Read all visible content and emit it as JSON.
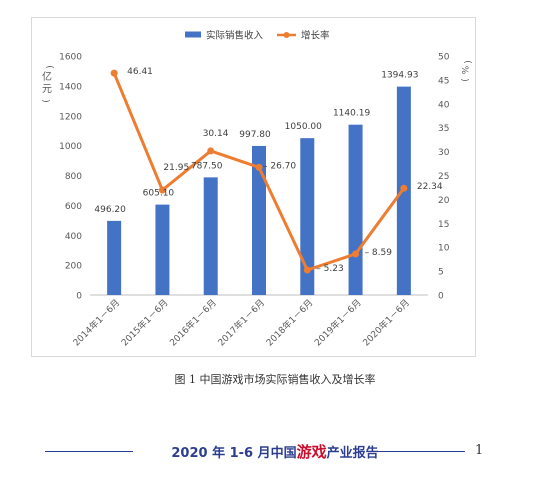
{
  "chart_data": {
    "type": "bar",
    "categories": [
      "2014年1－6月",
      "2015年1－6月",
      "2016年1－6月",
      "2017年1－6月",
      "2018年1－6月",
      "2019年1－6月",
      "2020年1－6月"
    ],
    "series": [
      {
        "name": "实际销售收入",
        "type": "bar",
        "axis": "left",
        "color": "#4472c4",
        "values": [
          496.2,
          605.1,
          787.5,
          997.8,
          1050.0,
          1140.19,
          1394.93
        ],
        "labels": [
          "496.20",
          "605.10",
          "787.50",
          "997.80",
          "1050.00",
          "1140.19",
          "1394.93"
        ]
      },
      {
        "name": "增长率",
        "type": "line",
        "axis": "right",
        "color": "#ed7d31",
        "values": [
          46.41,
          21.95,
          30.14,
          26.7,
          5.23,
          8.59,
          22.34
        ],
        "labels": [
          "46.41",
          "21.95",
          "30.14",
          "26.70",
          "5.23",
          "8.59",
          "22.34"
        ]
      }
    ],
    "yleft": {
      "label": "亿元",
      "min": 0,
      "max": 1600,
      "ticks": [
        0,
        200,
        400,
        600,
        800,
        1000,
        1200,
        1400,
        1600
      ]
    },
    "yright": {
      "label": "%",
      "min": 0,
      "max": 50,
      "ticks": [
        0,
        5,
        10,
        15,
        20,
        25,
        30,
        35,
        40,
        45,
        50
      ]
    },
    "legend_position": "top-center",
    "grid": false
  },
  "caption": "图 1 中国游戏市场实际销售收入及增长率",
  "footer": {
    "title_before": "2020 年 1-6 月中国",
    "title_highlight": "游戏",
    "title_after": "产业报告",
    "page_number": "1"
  }
}
